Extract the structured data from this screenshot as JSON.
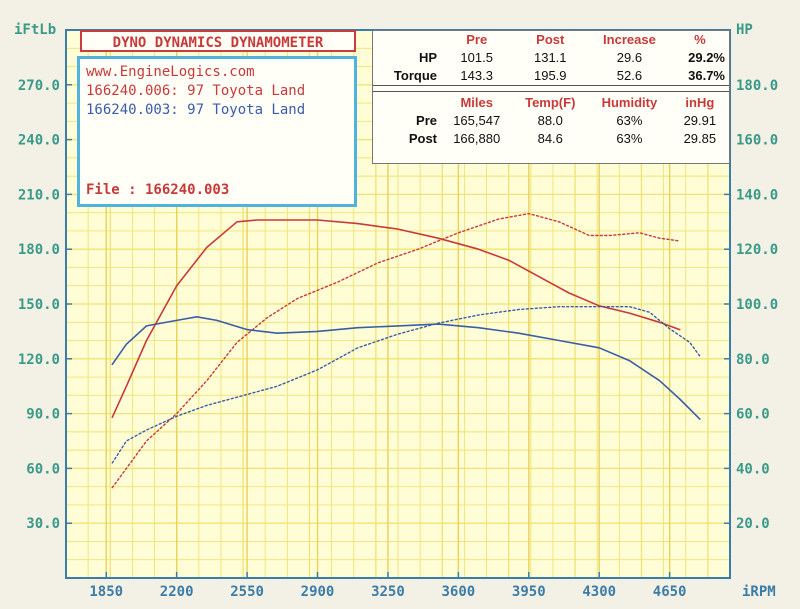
{
  "title": "DYNO DYNAMICS DYNAMOMETER",
  "website": "www.EngineLogics.com",
  "runs": [
    {
      "label": "166240.006: 97 Toyota Land",
      "color": "#c83a3a"
    },
    {
      "label": "166240.003: 97 Toyota Land",
      "color": "#3a5da8"
    }
  ],
  "file_label": "File      : 166240.003",
  "stats": {
    "power": {
      "headers": [
        "",
        "Pre",
        "Post",
        "Increase",
        "%"
      ],
      "rows": [
        {
          "name": "HP",
          "pre": "101.5",
          "post": "131.1",
          "increase": "29.6",
          "pct": "29.2%"
        },
        {
          "name": "Torque",
          "pre": "143.3",
          "post": "195.9",
          "increase": "52.6",
          "pct": "36.7%"
        }
      ]
    },
    "conditions": {
      "headers": [
        "",
        "Miles",
        "Temp(F)",
        "Humidity",
        "inHg"
      ],
      "rows": [
        {
          "name": "Pre",
          "miles": "165,547",
          "temp": "88.0",
          "humidity": "63%",
          "inhg": "29.91"
        },
        {
          "name": "Post",
          "miles": "166,880",
          "temp": "84.6",
          "humidity": "63%",
          "inhg": "29.85"
        }
      ]
    }
  },
  "chart_data": {
    "type": "line",
    "left_axis_unit": "iFtLb",
    "right_axis_unit": "HP",
    "x_axis_unit": "iRPM",
    "xlim": [
      1650,
      4950
    ],
    "ylim_left": [
      0,
      300
    ],
    "ylim_right": [
      0,
      200
    ],
    "x_ticks": [
      "1850",
      "2200",
      "2550",
      "2900",
      "3250",
      "3600",
      "3950",
      "4300",
      "4650"
    ],
    "x_tick_values": [
      1850,
      2200,
      2550,
      2900,
      3250,
      3600,
      3950,
      4300,
      4650
    ],
    "left_ticks": [
      "30.0",
      "60.0",
      "90.0",
      "120.0",
      "150.0",
      "180.0",
      "210.0",
      "240.0",
      "270.0"
    ],
    "left_tick_values": [
      30,
      60,
      90,
      120,
      150,
      180,
      210,
      240,
      270
    ],
    "right_ticks": [
      "20.0",
      "40.0",
      "60.0",
      "80.0",
      "100.0",
      "120.0",
      "140.0",
      "160.0",
      "180.0"
    ],
    "right_tick_values": [
      20,
      40,
      60,
      80,
      100,
      120,
      140,
      160,
      180
    ],
    "grid": true,
    "colors": {
      "post": "#c83a3a",
      "pre": "#3a5da8",
      "grid": "#f0e274",
      "axis": "#3a7da8"
    },
    "series": [
      {
        "name": "166240.006: 97 Toyota Land",
        "run": "post",
        "measure": "torque",
        "axis": "left",
        "style": "solid",
        "x": [
          1880,
          1950,
          2050,
          2200,
          2350,
          2500,
          2600,
          2700,
          2900,
          3100,
          3300,
          3500,
          3700,
          3850,
          4000,
          4150,
          4300,
          4450,
          4600,
          4700
        ],
        "y": [
          88,
          105,
          130,
          160,
          181,
          195,
          196,
          196,
          196,
          194,
          191,
          186,
          180,
          174,
          165,
          156,
          149,
          145,
          140,
          136
        ]
      },
      {
        "name": "166240.006: 97 Toyota Land",
        "run": "post",
        "measure": "hp",
        "axis": "right",
        "style": "dotted",
        "x": [
          1880,
          1950,
          2050,
          2200,
          2350,
          2500,
          2650,
          2800,
          3000,
          3200,
          3400,
          3600,
          3800,
          3950,
          4100,
          4250,
          4350,
          4500,
          4600,
          4700
        ],
        "y": [
          33,
          40,
          50,
          60,
          72,
          86,
          95,
          102,
          108,
          115,
          120,
          126,
          131,
          133,
          130,
          125,
          125,
          126,
          124,
          123
        ]
      },
      {
        "name": "166240.003: 97 Toyota Land",
        "run": "pre",
        "measure": "torque",
        "axis": "left",
        "style": "solid",
        "x": [
          1880,
          1950,
          2050,
          2200,
          2300,
          2400,
          2550,
          2700,
          2900,
          3100,
          3300,
          3500,
          3700,
          3900,
          4100,
          4300,
          4450,
          4600,
          4700,
          4800
        ],
        "y": [
          117,
          128,
          138,
          141,
          143,
          141,
          136,
          134,
          135,
          137,
          138,
          139,
          137,
          134,
          130,
          126,
          119,
          108,
          98,
          87
        ]
      },
      {
        "name": "166240.003: 97 Toyota Land",
        "run": "pre",
        "measure": "hp",
        "axis": "right",
        "style": "dotted",
        "x": [
          1880,
          1950,
          2050,
          2200,
          2350,
          2500,
          2700,
          2900,
          3100,
          3300,
          3500,
          3700,
          3900,
          4100,
          4300,
          4450,
          4550,
          4650,
          4750,
          4800
        ],
        "y": [
          42,
          50,
          54,
          59,
          63,
          66,
          70,
          76,
          84,
          89,
          93,
          96,
          98,
          99,
          99,
          99,
          97,
          91,
          86,
          81
        ]
      }
    ]
  }
}
